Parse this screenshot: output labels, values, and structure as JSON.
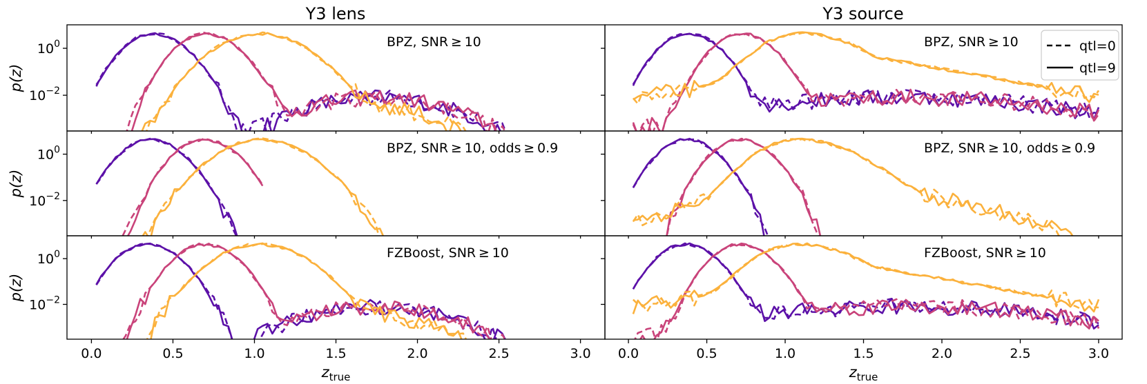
{
  "chart_data": {
    "type": "line",
    "columns": [
      {
        "title": "Y3 lens"
      },
      {
        "title": "Y3 source"
      }
    ],
    "rows": [
      {
        "label": "BPZ, SNR ≥ 10"
      },
      {
        "label": "BPZ, SNR ≥ 10, odds ≥ 0.9"
      },
      {
        "label": "FZBoost, SNR ≥ 10"
      }
    ],
    "xlabel": "z",
    "xlabel_sub": "true",
    "ylabel": "p(z)",
    "xlim": [
      -0.15,
      3.15
    ],
    "x_ticks": [
      "0.0",
      "0.5",
      "1.0",
      "1.5",
      "2.0",
      "2.5",
      "3.0"
    ],
    "x_tick_values": [
      0.0,
      0.5,
      1.0,
      1.5,
      2.0,
      2.5,
      3.0
    ],
    "yscale": "log",
    "ylim": [
      0.0003,
      10
    ],
    "y_ticks": [
      {
        "base": "10",
        "exp": "0"
      },
      {
        "base": "10",
        "exp": "−2"
      }
    ],
    "y_tick_values": [
      1,
      0.01
    ],
    "legend": {
      "placement": "top-right",
      "panel": "Y3 source, top row",
      "entries": [
        {
          "label": "qtl=0",
          "style": "dashed"
        },
        {
          "label": "qtl=9",
          "style": "solid"
        }
      ]
    },
    "bin_colors": [
      "#5c11a8",
      "#c9437a",
      "#fbb13c"
    ],
    "bin_peaks": [
      [
        [
          0.38,
          0.7,
          1.03
        ],
        [
          0.38,
          0.72,
          1.1
        ]
      ],
      [
        [
          0.36,
          0.69,
          1.04
        ],
        [
          0.37,
          0.71,
          1.08
        ]
      ],
      [
        [
          0.34,
          0.69,
          1.03
        ],
        [
          0.36,
          0.71,
          1.08
        ]
      ]
    ]
  }
}
